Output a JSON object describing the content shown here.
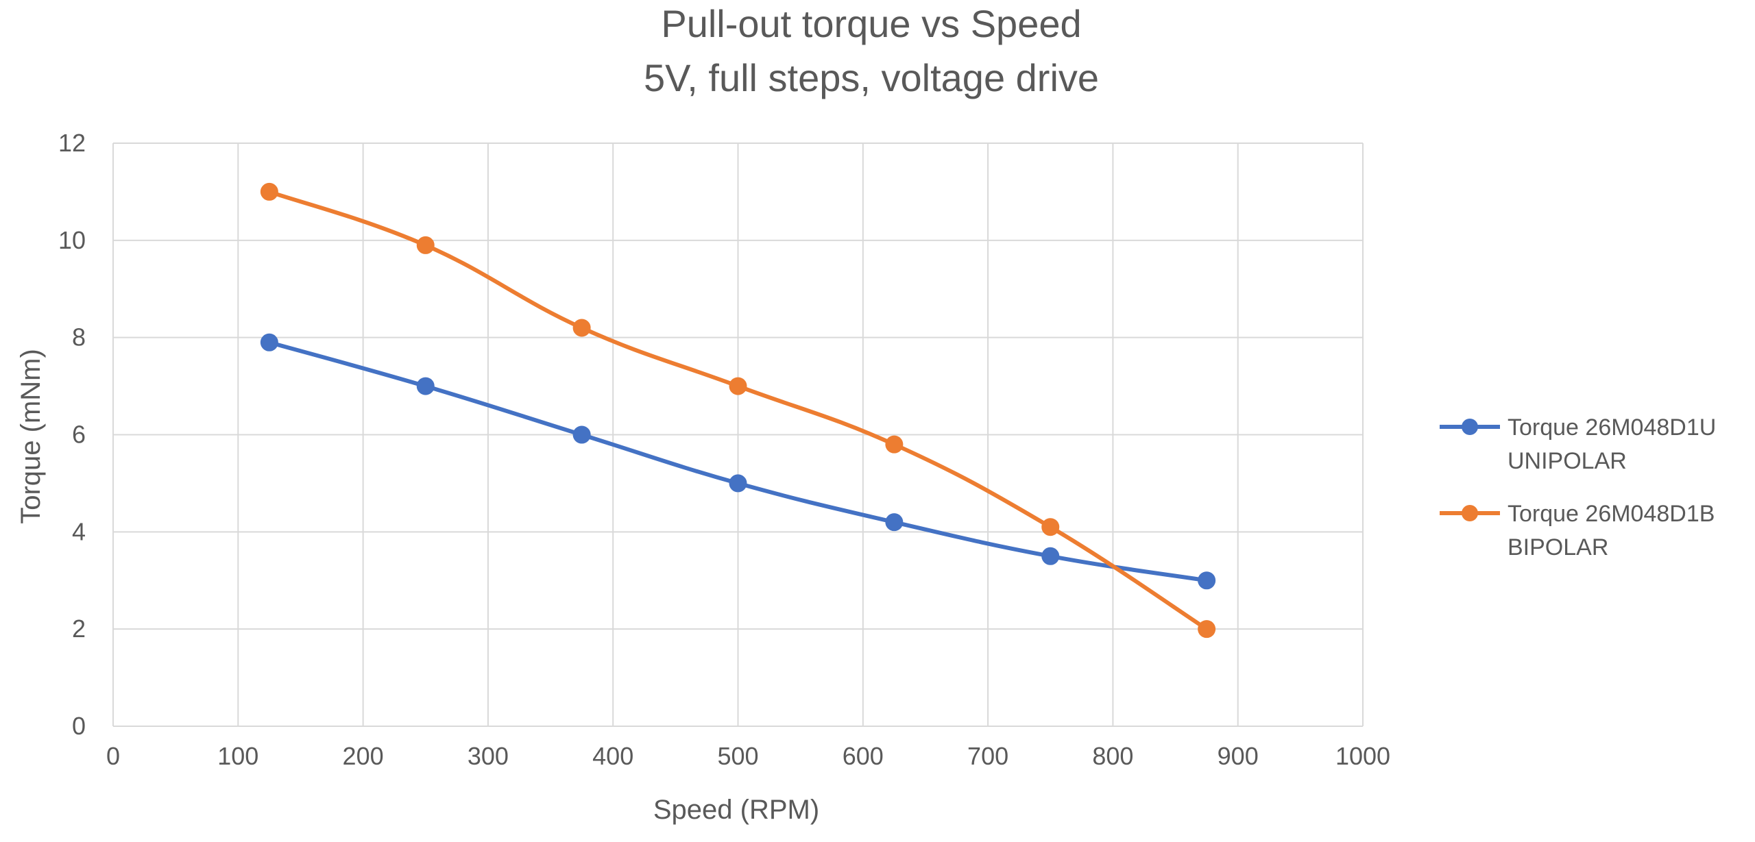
{
  "chart_data": {
    "type": "line",
    "title": [
      "Pull-out torque vs Speed",
      "5V, full steps, voltage drive"
    ],
    "xlabel": "Speed (RPM)",
    "ylabel": "Torque (mNm)",
    "xlim": [
      0,
      1000
    ],
    "ylim": [
      0,
      12
    ],
    "xticks": [
      0,
      100,
      200,
      300,
      400,
      500,
      600,
      700,
      800,
      900,
      1000
    ],
    "yticks": [
      0,
      2,
      4,
      6,
      8,
      10,
      12
    ],
    "grid": true,
    "legend_position": "right",
    "x": [
      125,
      250,
      375,
      500,
      625,
      750,
      875
    ],
    "series": [
      {
        "name": "Torque 26M048D1U UNIPOLAR",
        "legend_lines": [
          "Torque 26M048D1U",
          "UNIPOLAR"
        ],
        "color": "#4472c4",
        "values": [
          7.9,
          7.0,
          6.0,
          5.0,
          4.2,
          3.5,
          3.0
        ]
      },
      {
        "name": "Torque 26M048D1B BIPOLAR",
        "legend_lines": [
          "Torque 26M048D1B",
          "BIPOLAR"
        ],
        "color": "#ed7d31",
        "values": [
          11.0,
          9.9,
          8.2,
          7.0,
          5.8,
          4.1,
          2.0
        ]
      }
    ]
  }
}
